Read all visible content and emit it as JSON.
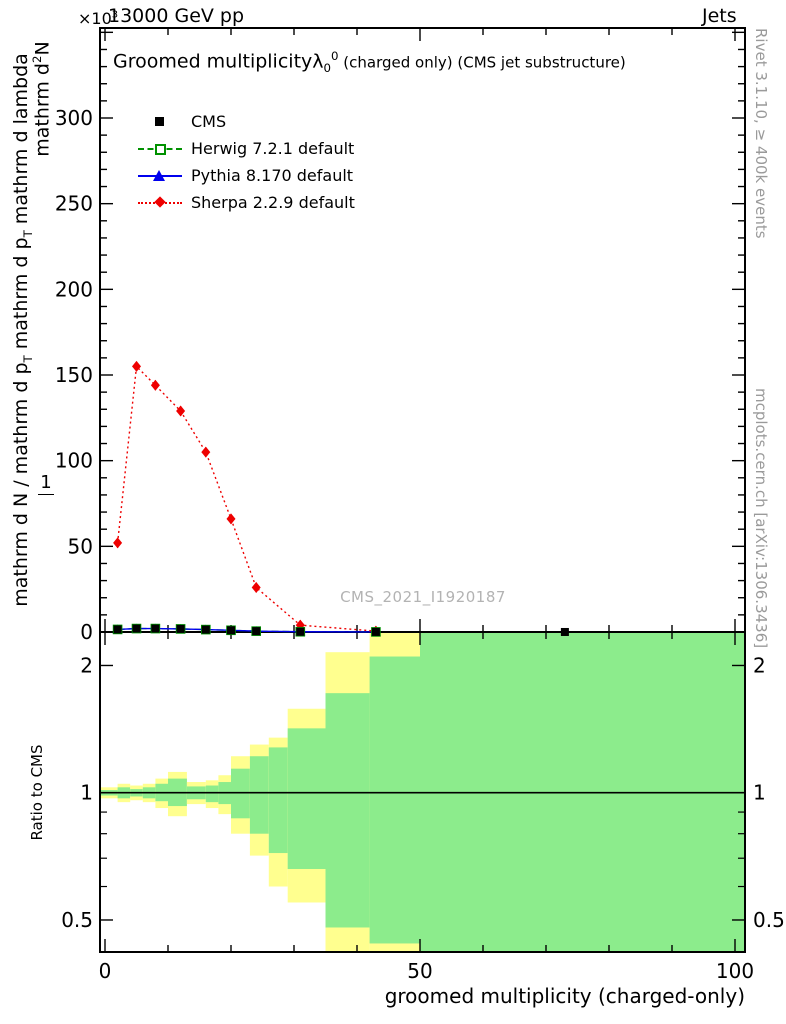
{
  "header": {
    "scale_segments": [
      {
        "t": "×10"
      },
      {
        "t": "3",
        "sup": true
      }
    ],
    "beam_energy": "13000 GeV pp",
    "right_label": "Jets"
  },
  "main": {
    "title_segments": [
      {
        "t": "Groomed multiplicity"
      },
      {
        "t": "λ"
      },
      {
        "t": "0",
        "sub": true
      },
      {
        "t": "0",
        "sup": true
      },
      {
        "t": " (charged only) (CMS jet substructure)",
        "small": true
      }
    ],
    "watermark": "CMS_2021_I1920187",
    "ylabel_numerator_segments": [
      {
        "t": "mathrm d"
      },
      {
        "t": "2",
        "sup": true
      },
      {
        "t": "N"
      }
    ],
    "ylabel_one": "1",
    "ylabel_denominator_segments": [
      {
        "t": "mathrm d N / mathrm d p"
      },
      {
        "t": "T",
        "sub": true
      },
      {
        "t": " mathrm d p"
      },
      {
        "t": "T",
        "sub": true
      },
      {
        "t": " mathrm d lambda"
      }
    ]
  },
  "legend": {
    "items": [
      {
        "label": "CMS",
        "marker": "filled-square",
        "color": "#000000"
      },
      {
        "label": "Herwig 7.2.1 default",
        "marker": "open-square",
        "color": "#009100"
      },
      {
        "label": "Pythia 8.170 default",
        "marker": "filled-triangle",
        "color": "#0000ee"
      },
      {
        "label": "Sherpa 2.2.9 default",
        "marker": "filled-diamond",
        "color": "#ee0000"
      }
    ]
  },
  "side_notes": {
    "rivet": "Rivet 3.1.10, ≥ 400k events",
    "mcplots": "mcplots.cern.ch [arXiv:1306.3436]"
  },
  "chart_data": {
    "type": "line",
    "title": "Groomed multiplicity λ_0^0 (charged only) (CMS jet substructure)",
    "xlabel": "groomed multiplicity (charged-only)",
    "ylabel": "1 / (mathrm d N / mathrm d p_T) · mathrm d²N / (mathrm d p_T mathrm d lambda)",
    "y_scale_exponent": 3,
    "xlim": [
      -0.8,
      101.6
    ],
    "ylim": [
      0,
      352
    ],
    "x_major_ticks": [
      0,
      50,
      100
    ],
    "x_minor_step": 10,
    "y_major_ticks": [
      0,
      50,
      100,
      150,
      200,
      250,
      300
    ],
    "y_minor_step": 10,
    "grid": false,
    "legend_position": "top-left",
    "series": [
      {
        "name": "CMS",
        "marker": "filled-square",
        "color": "#000000",
        "x": [
          2,
          5,
          8,
          12,
          16,
          20,
          24,
          31,
          43,
          73
        ],
        "y": [
          1.5,
          2.0,
          2.0,
          1.8,
          1.4,
          1.0,
          0.5,
          0.15,
          0.05,
          0.01
        ]
      },
      {
        "name": "Herwig 7.2.1 default",
        "marker": "open-square",
        "color": "#009100",
        "line_style": "dashed",
        "x": [
          2,
          5,
          8,
          12,
          16,
          20,
          24,
          31,
          43
        ],
        "y": [
          1.5,
          2.0,
          2.0,
          1.8,
          1.4,
          1.0,
          0.5,
          0.15,
          0.05
        ]
      },
      {
        "name": "Pythia 8.170 default",
        "marker": "filled-triangle",
        "color": "#0000ee",
        "line_style": "solid",
        "x": [
          2,
          5,
          8,
          12,
          16,
          20,
          24,
          31,
          43
        ],
        "y": [
          1.5,
          2.0,
          2.0,
          1.8,
          1.4,
          1.0,
          0.5,
          0.15,
          0.05
        ]
      },
      {
        "name": "Sherpa 2.2.9 default",
        "marker": "filled-diamond",
        "color": "#ee0000",
        "line_style": "dotted",
        "error_bars": true,
        "x": [
          2,
          5,
          8,
          12,
          16,
          20,
          24,
          31,
          43
        ],
        "y": [
          52,
          155,
          144,
          129,
          105,
          66,
          26,
          4,
          0.5
        ]
      }
    ],
    "ratio_panel": {
      "ylabel": "Ratio to CMS",
      "yticks": [
        0.5,
        1,
        2
      ],
      "yticks_minor": [
        0.6,
        0.7,
        0.8,
        0.9
      ],
      "ylim": [
        0.42,
        2.4
      ],
      "scale": "log",
      "reference_line": 1,
      "colors": {
        "yellow": "#ffff8f",
        "green": "#8cec8c"
      },
      "bands": [
        {
          "x": [
            -0.8,
            2
          ],
          "yellow": [
            0.97,
            1.03
          ],
          "green": [
            0.985,
            1.015
          ]
        },
        {
          "x": [
            2,
            4
          ],
          "yellow": [
            0.95,
            1.05
          ],
          "green": [
            0.97,
            1.03
          ]
        },
        {
          "x": [
            4,
            6
          ],
          "yellow": [
            0.96,
            1.04
          ],
          "green": [
            0.98,
            1.02
          ]
        },
        {
          "x": [
            6,
            8
          ],
          "yellow": [
            0.95,
            1.05
          ],
          "green": [
            0.97,
            1.03
          ]
        },
        {
          "x": [
            8,
            10
          ],
          "yellow": [
            0.92,
            1.08
          ],
          "green": [
            0.955,
            1.05
          ]
        },
        {
          "x": [
            10,
            13
          ],
          "yellow": [
            0.88,
            1.12
          ],
          "green": [
            0.93,
            1.08
          ]
        },
        {
          "x": [
            13,
            16
          ],
          "yellow": [
            0.94,
            1.06
          ],
          "green": [
            0.965,
            1.035
          ]
        },
        {
          "x": [
            16,
            18
          ],
          "yellow": [
            0.92,
            1.07
          ],
          "green": [
            0.95,
            1.04
          ]
        },
        {
          "x": [
            18,
            20
          ],
          "yellow": [
            0.89,
            1.1
          ],
          "green": [
            0.94,
            1.06
          ]
        },
        {
          "x": [
            20,
            23
          ],
          "yellow": [
            0.8,
            1.22
          ],
          "green": [
            0.87,
            1.14
          ]
        },
        {
          "x": [
            23,
            26
          ],
          "yellow": [
            0.71,
            1.3
          ],
          "green": [
            0.8,
            1.22
          ]
        },
        {
          "x": [
            26,
            29
          ],
          "yellow": [
            0.6,
            1.35
          ],
          "green": [
            0.72,
            1.28
          ]
        },
        {
          "x": [
            29,
            35
          ],
          "yellow": [
            0.55,
            1.58
          ],
          "green": [
            0.66,
            1.42
          ]
        },
        {
          "x": [
            35,
            42
          ],
          "yellow": [
            0.42,
            2.15
          ],
          "green": [
            0.48,
            1.72
          ]
        },
        {
          "x": [
            42,
            50
          ],
          "yellow": [
            0.42,
            2.4
          ],
          "green": [
            0.44,
            2.1
          ]
        },
        {
          "x": [
            50,
            101.6
          ],
          "yellow": [
            0.42,
            2.4
          ],
          "green": [
            0.42,
            2.4
          ]
        }
      ]
    }
  }
}
